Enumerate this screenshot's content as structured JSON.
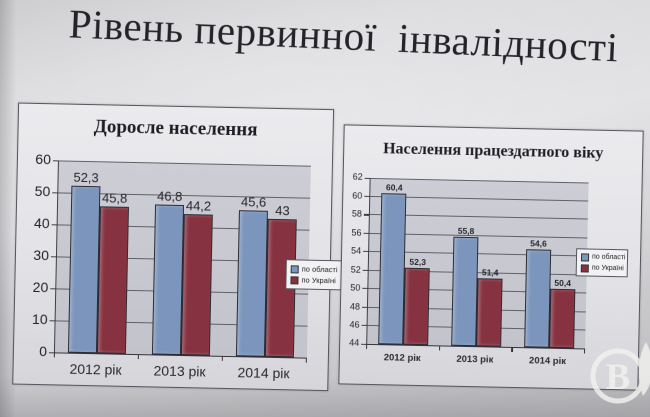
{
  "slide": {
    "title": "Рівень первинної  інвалідності"
  },
  "colors": {
    "series_region_blue": "#7b95bc",
    "series_ukraine_red": "#873240",
    "plot_background": "#c8c8d1",
    "gridline": "#4d4d55",
    "watermark_white": "#f2f2ef"
  },
  "watermark": {
    "letter": "В"
  },
  "chart_data": [
    {
      "type": "bar",
      "title": "Доросле населення",
      "categories": [
        "2012 рік",
        "2013 рік",
        "2014 рік"
      ],
      "series": [
        {
          "name": "по області",
          "color": "#7b95bc",
          "values": [
            52.3,
            46.8,
            45.6
          ]
        },
        {
          "name": "по Україні",
          "color": "#873240",
          "values": [
            45.8,
            44.2,
            43
          ]
        }
      ],
      "data_labels": [
        [
          "52,3",
          "46,8",
          "45,6"
        ],
        [
          "45,8",
          "44,2",
          "43"
        ]
      ],
      "xlabel": "",
      "ylabel": "",
      "ylim": [
        0,
        60
      ],
      "yticks": [
        0,
        10,
        20,
        30,
        40,
        50,
        60
      ],
      "grid": true,
      "legend_position": "right"
    },
    {
      "type": "bar",
      "title": "Населення працездатного віку",
      "categories": [
        "2012 рік",
        "2013 рік",
        "2014 рік"
      ],
      "series": [
        {
          "name": "по області",
          "color": "#7b95bc",
          "values": [
            60.4,
            55.8,
            54.6
          ]
        },
        {
          "name": "по Україні",
          "color": "#873240",
          "values": [
            52.3,
            51.4,
            50.4
          ]
        }
      ],
      "data_labels": [
        [
          "60,4",
          "55,8",
          "54,6"
        ],
        [
          "52,3",
          "51,4",
          "50,4"
        ]
      ],
      "xlabel": "",
      "ylabel": "",
      "ylim": [
        44,
        62
      ],
      "yticks": [
        44,
        46,
        48,
        50,
        52,
        54,
        56,
        58,
        60,
        62
      ],
      "grid": true,
      "legend_position": "right"
    }
  ]
}
